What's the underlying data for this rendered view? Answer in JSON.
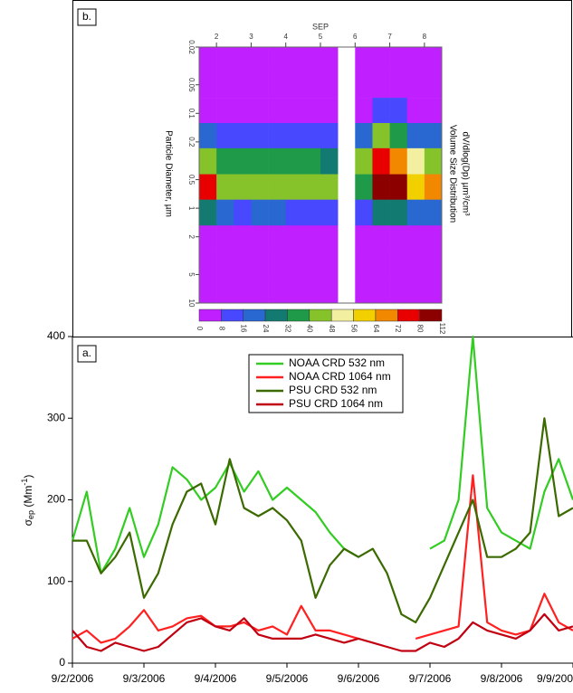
{
  "chart_data": [
    {
      "type": "heatmap",
      "panel_label": "b.",
      "top_axis_label": "SEP",
      "ylabel": "Particle Diameter, µm",
      "colorbar_label": [
        "Volume Size Distribution",
        "dV/dlog(Dp)  µm³/cm³"
      ],
      "x": [
        1.75,
        2.25,
        2.75,
        3.25,
        3.75,
        4.25,
        4.75,
        5.25,
        5.75,
        6.25,
        6.75,
        7.25,
        7.75,
        8.25
      ],
      "y": [
        0.027,
        0.05,
        0.094,
        0.17,
        0.32,
        0.6,
        1.1,
        2.1,
        3.9,
        7.3
      ],
      "z": [
        [
          2,
          3,
          4,
          20,
          45,
          75,
          25,
          5,
          4,
          3
        ],
        [
          2,
          3,
          4,
          15,
          35,
          45,
          18,
          5,
          3,
          3
        ],
        [
          2,
          2,
          3,
          14,
          38,
          44,
          14,
          4,
          3,
          2
        ],
        [
          2,
          2,
          3,
          15,
          36,
          42,
          18,
          4,
          3,
          2
        ],
        [
          2,
          2,
          3,
          14,
          34,
          46,
          20,
          5,
          3,
          3
        ],
        [
          2,
          2,
          3,
          14,
          36,
          44,
          14,
          6,
          4,
          3
        ],
        [
          2,
          2,
          3,
          13,
          35,
          45,
          15,
          5,
          3,
          2
        ],
        [
          2,
          2,
          3,
          12,
          30,
          40,
          12,
          4,
          3,
          2
        ],
        null,
        [
          2,
          3,
          5,
          20,
          40,
          38,
          10,
          3,
          2,
          2
        ],
        [
          3,
          6,
          14,
          40,
          75,
          90,
          30,
          6,
          3,
          2
        ],
        [
          3,
          5,
          12,
          35,
          70,
          85,
          25,
          5,
          3,
          2
        ],
        [
          2,
          3,
          6,
          20,
          50,
          60,
          20,
          5,
          3,
          2
        ],
        [
          2,
          3,
          5,
          18,
          45,
          65,
          20,
          5,
          3,
          2
        ]
      ],
      "xlim": [
        1.5,
        8.5
      ],
      "xticks": [
        2,
        3,
        4,
        5,
        6,
        7,
        8
      ],
      "ylim": [
        0.02,
        10
      ],
      "log_y": true,
      "yticks": [
        0.02,
        0.05,
        0.1,
        0.2,
        0.5,
        1,
        2,
        5,
        10
      ],
      "colorbar_bounds": [
        0,
        8,
        16,
        24,
        32,
        40,
        48,
        56,
        64,
        72,
        80,
        112
      ],
      "colorbar_colors": [
        "#c020ff",
        "#4848ff",
        "#2868d0",
        "#127a70",
        "#1f9a48",
        "#86c22a",
        "#f2f0a0",
        "#f2d000",
        "#f28800",
        "#e80000",
        "#8c0000"
      ]
    },
    {
      "type": "line",
      "panel_label": "a.",
      "ylabel": [
        "σ",
        "ep",
        " (Mm",
        "-1",
        ")"
      ],
      "x": [
        2.0,
        2.2,
        2.4,
        2.6,
        2.8,
        3.0,
        3.2,
        3.4,
        3.6,
        3.8,
        4.0,
        4.2,
        4.4,
        4.6,
        4.8,
        5.0,
        5.2,
        5.4,
        5.6,
        5.8,
        6.0,
        6.2,
        6.4,
        6.6,
        6.8,
        7.0,
        7.2,
        7.4,
        7.6,
        7.8,
        8.0,
        8.2,
        8.4,
        8.6,
        8.8,
        9.0
      ],
      "xlim": [
        2,
        9
      ],
      "xticks": [
        {
          "value": 2,
          "label": "9/2/2006"
        },
        {
          "value": 3,
          "label": "9/3/2006"
        },
        {
          "value": 4,
          "label": "9/4/2006"
        },
        {
          "value": 5,
          "label": "9/5/2006"
        },
        {
          "value": 6,
          "label": "9/6/2006"
        },
        {
          "value": 7,
          "label": "9/7/2006"
        },
        {
          "value": 8,
          "label": "9/8/2006"
        },
        {
          "value": 9,
          "label": "9/9/200"
        }
      ],
      "ylim": [
        0,
        400
      ],
      "yticks": [
        0,
        100,
        200,
        300,
        400
      ],
      "series": [
        {
          "name": "NOAA CRD 532 nm",
          "color": "#33cc22",
          "values": [
            150,
            210,
            110,
            140,
            190,
            130,
            170,
            240,
            225,
            200,
            215,
            245,
            210,
            235,
            200,
            215,
            200,
            185,
            160,
            140,
            130,
            null,
            null,
            null,
            null,
            140,
            150,
            200,
            400,
            190,
            160,
            150,
            140,
            210,
            250,
            200
          ]
        },
        {
          "name": "NOAA CRD 1064 nm",
          "color": "#ff2020",
          "values": [
            30,
            40,
            25,
            30,
            45,
            65,
            40,
            45,
            55,
            58,
            45,
            45,
            50,
            40,
            45,
            35,
            70,
            40,
            40,
            35,
            30,
            null,
            null,
            null,
            30,
            35,
            40,
            45,
            230,
            50,
            40,
            35,
            40,
            85,
            50,
            40
          ]
        },
        {
          "name": "PSU CRD 532 nm",
          "color": "#3a6a00",
          "values": [
            150,
            150,
            110,
            130,
            160,
            80,
            110,
            170,
            210,
            220,
            170,
            250,
            190,
            180,
            190,
            175,
            150,
            80,
            120,
            140,
            130,
            140,
            110,
            60,
            50,
            80,
            120,
            160,
            200,
            130,
            130,
            140,
            160,
            300,
            180,
            190
          ]
        },
        {
          "name": "PSU CRD 1064 nm",
          "color": "#c00010",
          "values": [
            40,
            20,
            15,
            25,
            20,
            15,
            20,
            35,
            50,
            55,
            45,
            40,
            55,
            35,
            30,
            30,
            30,
            35,
            30,
            25,
            30,
            25,
            20,
            15,
            15,
            25,
            20,
            30,
            50,
            40,
            35,
            30,
            40,
            60,
            40,
            45
          ]
        }
      ]
    }
  ]
}
